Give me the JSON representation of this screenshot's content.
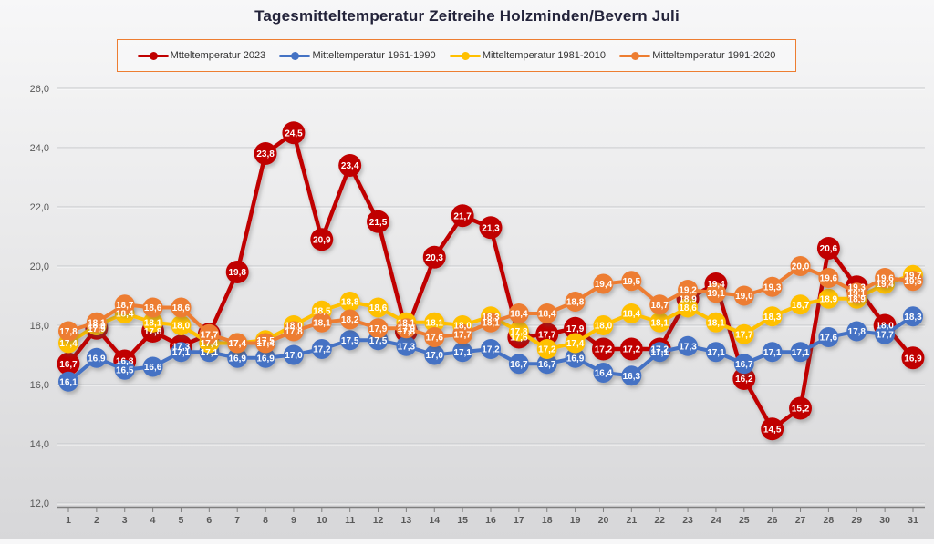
{
  "title": "Tagesmitteltemperatur Zeitreihe Holzminden/Bevern Juli",
  "chart_data": {
    "type": "line",
    "title": "Tagesmitteltemperatur Zeitreihe Holzminden/Bevern Juli",
    "x": [
      1,
      2,
      3,
      4,
      5,
      6,
      7,
      8,
      9,
      10,
      11,
      12,
      13,
      14,
      15,
      16,
      17,
      18,
      19,
      20,
      21,
      22,
      23,
      24,
      25,
      26,
      27,
      28,
      29,
      30,
      31
    ],
    "series": [
      {
        "name": "Mtteltemperatur 2023",
        "color": "#C00000",
        "values": [
          16.7,
          17.9,
          16.8,
          17.8,
          17.3,
          17.7,
          19.8,
          23.8,
          24.5,
          20.9,
          23.4,
          21.5,
          17.8,
          20.3,
          21.7,
          21.3,
          17.6,
          17.7,
          17.9,
          17.2,
          17.2,
          17.2,
          18.9,
          19.4,
          16.2,
          14.5,
          15.2,
          20.6,
          19.3,
          18.0,
          16.9
        ]
      },
      {
        "name": "Mitteltemperatur 1961-1990",
        "color": "#4472C4",
        "values": [
          16.1,
          16.9,
          16.5,
          16.6,
          17.1,
          17.1,
          16.9,
          16.9,
          17.0,
          17.2,
          17.5,
          17.5,
          17.3,
          17.0,
          17.1,
          17.2,
          16.7,
          16.7,
          16.9,
          16.4,
          16.3,
          17.1,
          17.3,
          17.1,
          16.7,
          17.1,
          17.1,
          17.6,
          17.8,
          17.7,
          18.3
        ]
      },
      {
        "name": "Mitteltemperatur 1981-2010",
        "color": "#FFC000",
        "values": [
          17.4,
          18.0,
          18.4,
          18.1,
          18.0,
          17.4,
          17.4,
          17.5,
          18.0,
          18.5,
          18.8,
          18.6,
          18.1,
          18.1,
          18.0,
          18.3,
          17.8,
          17.2,
          17.4,
          18.0,
          18.4,
          18.1,
          18.6,
          18.1,
          17.7,
          18.3,
          18.7,
          18.9,
          18.9,
          19.4,
          19.7
        ]
      },
      {
        "name": "Mitteltemperatur 1991-2020",
        "color": "#ED7D31",
        "values": [
          17.8,
          18.1,
          18.7,
          18.6,
          18.6,
          17.7,
          17.4,
          17.4,
          17.8,
          18.1,
          18.2,
          17.9,
          17.9,
          17.6,
          17.7,
          18.1,
          18.4,
          18.4,
          18.8,
          19.4,
          19.5,
          18.7,
          19.2,
          19.1,
          19.0,
          19.3,
          20.0,
          19.6,
          19.1,
          19.6,
          19.5
        ]
      }
    ],
    "ylim": [
      12,
      26
    ],
    "ytick_step": 2,
    "ytick_labels": [
      "12,0",
      "14,0",
      "16,0",
      "18,0",
      "20,0",
      "22,0",
      "24,0",
      "26,0"
    ],
    "grid": true,
    "legend_position": "top",
    "decimal_separator": ",",
    "xlabel": "",
    "ylabel": ""
  },
  "colors": {
    "axis_text": "#595959",
    "axis_line": "#7f7f7f",
    "gridline": "#c4c6c9",
    "legend_border": "#ED7D31",
    "label_text": "#ffffff"
  }
}
